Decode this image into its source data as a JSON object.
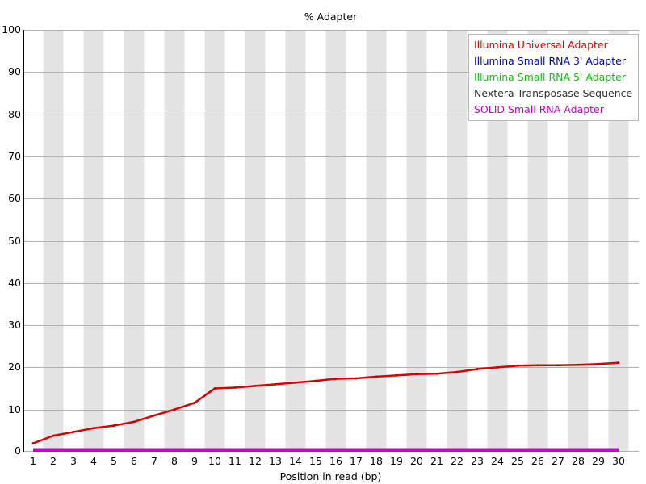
{
  "chart_data": {
    "type": "line",
    "title": "% Adapter",
    "xlabel": "Position in read (bp)",
    "ylabel": "",
    "x": [
      1,
      2,
      3,
      4,
      5,
      6,
      7,
      8,
      9,
      10,
      11,
      12,
      13,
      14,
      15,
      16,
      17,
      18,
      19,
      20,
      21,
      22,
      23,
      24,
      25,
      26,
      27,
      28,
      29,
      30
    ],
    "ylim": [
      0,
      100
    ],
    "yticks": [
      0,
      10,
      20,
      30,
      40,
      50,
      60,
      70,
      80,
      90,
      100
    ],
    "grid": "horizontal",
    "plot_background": "alternating white / light-gray vertical bands, one per position",
    "legend_position": "top-right",
    "series": [
      {
        "name": "Illumina Universal Adapter",
        "color": "#dd0000",
        "width": 2.5,
        "markers": true,
        "values": [
          2.0,
          3.8,
          4.7,
          5.6,
          6.2,
          7.1,
          8.6,
          10.0,
          11.6,
          15.0,
          15.2,
          15.6,
          16.0,
          16.4,
          16.8,
          17.3,
          17.4,
          17.8,
          18.1,
          18.4,
          18.5,
          18.9,
          19.6,
          20.0,
          20.4,
          20.5,
          20.5,
          20.6,
          20.8,
          21.1
        ]
      },
      {
        "name": "Illumina Small RNA 3' Adapter",
        "color": "#0000cc",
        "width": 2,
        "markers": false,
        "values": [
          0,
          0,
          0,
          0,
          0,
          0,
          0,
          0,
          0,
          0,
          0,
          0,
          0,
          0,
          0,
          0,
          0,
          0,
          0,
          0,
          0,
          0,
          0,
          0,
          0,
          0,
          0,
          0,
          0,
          0
        ]
      },
      {
        "name": "Illumina Small RNA 5' Adapter",
        "color": "#00cc00",
        "width": 2,
        "markers": false,
        "values": [
          0,
          0,
          0,
          0,
          0,
          0,
          0,
          0,
          0,
          0,
          0,
          0,
          0,
          0,
          0,
          0,
          0,
          0,
          0,
          0,
          0,
          0,
          0,
          0,
          0,
          0,
          0,
          0,
          0,
          0
        ]
      },
      {
        "name": "Nextera Transposase Sequence",
        "color": "#333333",
        "width": 2,
        "markers": false,
        "values": [
          0,
          0,
          0,
          0,
          0,
          0,
          0,
          0,
          0,
          0,
          0,
          0,
          0,
          0,
          0,
          0,
          0,
          0,
          0,
          0,
          0,
          0,
          0,
          0,
          0,
          0,
          0,
          0,
          0,
          0
        ]
      },
      {
        "name": "SOLID Small RNA Adapter",
        "color": "#cc00cc",
        "width": 4.5,
        "markers": false,
        "values": [
          0,
          0,
          0,
          0,
          0,
          0,
          0,
          0,
          0,
          0,
          0,
          0,
          0,
          0,
          0,
          0,
          0,
          0,
          0,
          0,
          0,
          0,
          0,
          0,
          0,
          0,
          0,
          0,
          0,
          0
        ]
      }
    ]
  },
  "colors": {
    "band_gray": "#e3e3e3",
    "gridline": "#b0b0b0",
    "y_axis": "#000000",
    "legend_border": "#b8b8b8",
    "background": "#ffffff"
  }
}
